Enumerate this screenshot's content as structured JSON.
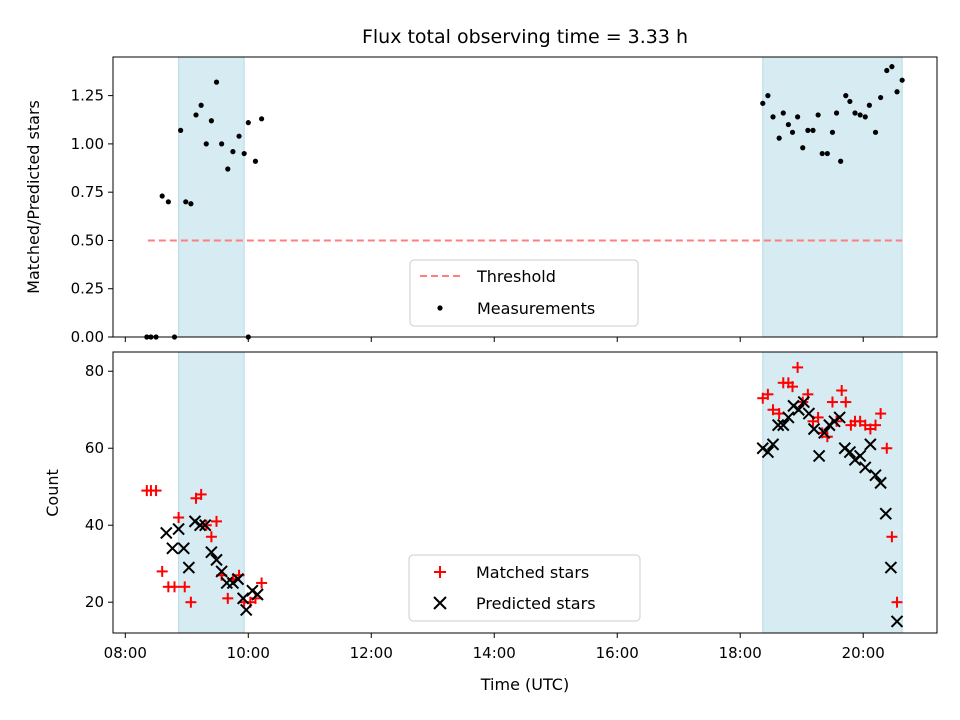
{
  "chart_data": [
    {
      "type": "scatter",
      "title": "Flux total observing time = 3.33 h",
      "xlabel": "",
      "ylabel": "Matched/Predicted stars",
      "xlim": [
        "07:48",
        "21:12"
      ],
      "ylim": [
        0,
        1.45
      ],
      "yticks": [
        "0.00",
        "0.25",
        "0.50",
        "0.75",
        "1.00",
        "1.25"
      ],
      "legend_position": "lower-center",
      "shaded_intervals": [
        [
          "08:52",
          "09:56"
        ],
        [
          "18:22",
          "20:38"
        ]
      ],
      "shade_color": "#add8e6",
      "threshold": {
        "name": "Threshold",
        "value": 0.5,
        "from": "08:22",
        "to": "20:38",
        "color": "#ff7f7f",
        "style": "dashed"
      },
      "series": [
        {
          "name": "Measurements",
          "color": "#000000",
          "marker": "dot",
          "points": [
            [
              "08:21",
              0.0
            ],
            [
              "08:25",
              0.0
            ],
            [
              "08:30",
              0.0
            ],
            [
              "08:36",
              0.73
            ],
            [
              "08:42",
              0.7
            ],
            [
              "08:48",
              0.0
            ],
            [
              "08:54",
              1.07
            ],
            [
              "08:59",
              0.7
            ],
            [
              "09:04",
              0.69
            ],
            [
              "09:09",
              1.15
            ],
            [
              "09:14",
              1.2
            ],
            [
              "09:19",
              1.0
            ],
            [
              "09:24",
              1.12
            ],
            [
              "09:29",
              1.32
            ],
            [
              "09:34",
              1.0
            ],
            [
              "09:40",
              0.87
            ],
            [
              "09:45",
              0.96
            ],
            [
              "09:51",
              1.04
            ],
            [
              "09:56",
              0.95
            ],
            [
              "10:00",
              1.11
            ],
            [
              "10:00",
              0.0
            ],
            [
              "10:07",
              0.91
            ],
            [
              "10:13",
              1.13
            ],
            [
              "18:22",
              1.21
            ],
            [
              "18:27",
              1.25
            ],
            [
              "18:32",
              1.14
            ],
            [
              "18:38",
              1.03
            ],
            [
              "18:42",
              1.16
            ],
            [
              "18:47",
              1.1
            ],
            [
              "18:51",
              1.06
            ],
            [
              "18:56",
              1.14
            ],
            [
              "19:01",
              0.98
            ],
            [
              "19:06",
              1.07
            ],
            [
              "19:11",
              1.07
            ],
            [
              "19:16",
              1.15
            ],
            [
              "19:20",
              0.95
            ],
            [
              "19:25",
              0.95
            ],
            [
              "19:30",
              1.06
            ],
            [
              "19:34",
              1.16
            ],
            [
              "19:38",
              0.91
            ],
            [
              "19:43",
              1.25
            ],
            [
              "19:47",
              1.22
            ],
            [
              "19:52",
              1.16
            ],
            [
              "19:57",
              1.15
            ],
            [
              "20:02",
              1.14
            ],
            [
              "20:06",
              1.2
            ],
            [
              "20:12",
              1.06
            ],
            [
              "20:17",
              1.24
            ],
            [
              "20:23",
              1.38
            ],
            [
              "20:28",
              1.4
            ],
            [
              "20:33",
              1.27
            ],
            [
              "20:38",
              1.33
            ]
          ]
        }
      ]
    },
    {
      "type": "scatter",
      "title": "",
      "xlabel": "Time (UTC)",
      "ylabel": "Count",
      "xlim": [
        "07:48",
        "21:12"
      ],
      "ylim": [
        12,
        85
      ],
      "yticks": [
        20,
        40,
        60,
        80
      ],
      "xticks": [
        "08:00",
        "10:00",
        "12:00",
        "14:00",
        "16:00",
        "18:00",
        "20:00"
      ],
      "legend_position": "lower-center",
      "shaded_intervals": [
        [
          "08:52",
          "09:56"
        ],
        [
          "18:22",
          "20:38"
        ]
      ],
      "shade_color": "#add8e6",
      "series": [
        {
          "name": "Matched stars",
          "color": "#ff0000",
          "marker": "plus",
          "points": [
            [
              "08:21",
              49
            ],
            [
              "08:25",
              49
            ],
            [
              "08:30",
              49
            ],
            [
              "08:36",
              28
            ],
            [
              "08:42",
              24
            ],
            [
              "08:48",
              24
            ],
            [
              "08:52",
              42
            ],
            [
              "08:58",
              24
            ],
            [
              "09:04",
              20
            ],
            [
              "09:09",
              47
            ],
            [
              "09:14",
              48
            ],
            [
              "09:19",
              40
            ],
            [
              "09:24",
              37
            ],
            [
              "09:29",
              41
            ],
            [
              "09:34",
              27
            ],
            [
              "09:40",
              21
            ],
            [
              "09:45",
              26
            ],
            [
              "09:51",
              27
            ],
            [
              "09:56",
              20
            ],
            [
              "10:02",
              20
            ],
            [
              "10:07",
              21
            ],
            [
              "10:13",
              25
            ],
            [
              "18:22",
              73
            ],
            [
              "18:27",
              74
            ],
            [
              "18:32",
              70
            ],
            [
              "18:38",
              69
            ],
            [
              "18:42",
              77
            ],
            [
              "18:47",
              77
            ],
            [
              "18:51",
              76
            ],
            [
              "18:56",
              81
            ],
            [
              "19:01",
              72
            ],
            [
              "19:06",
              74
            ],
            [
              "19:11",
              67
            ],
            [
              "19:16",
              68
            ],
            [
              "19:20",
              64
            ],
            [
              "19:25",
              63
            ],
            [
              "19:30",
              72
            ],
            [
              "19:34",
              67
            ],
            [
              "19:39",
              75
            ],
            [
              "19:43",
              72
            ],
            [
              "19:48",
              66
            ],
            [
              "19:52",
              67
            ],
            [
              "19:57",
              67
            ],
            [
              "20:02",
              66
            ],
            [
              "20:07",
              65
            ],
            [
              "20:12",
              66
            ],
            [
              "20:17",
              69
            ],
            [
              "20:23",
              60
            ],
            [
              "20:28",
              37
            ],
            [
              "20:33",
              20
            ]
          ]
        },
        {
          "name": "Predicted stars",
          "color": "#000000",
          "marker": "x",
          "points": [
            [
              "08:40",
              38
            ],
            [
              "08:46",
              34
            ],
            [
              "08:52",
              39
            ],
            [
              "08:57",
              34
            ],
            [
              "09:02",
              29
            ],
            [
              "09:08",
              41
            ],
            [
              "09:13",
              40
            ],
            [
              "09:18",
              40
            ],
            [
              "09:24",
              33
            ],
            [
              "09:29",
              31
            ],
            [
              "09:34",
              28
            ],
            [
              "09:39",
              25
            ],
            [
              "09:45",
              25
            ],
            [
              "09:50",
              26
            ],
            [
              "09:55",
              21
            ],
            [
              "09:58",
              18
            ],
            [
              "10:04",
              23
            ],
            [
              "10:09",
              22
            ],
            [
              "18:22",
              60
            ],
            [
              "18:27",
              59
            ],
            [
              "18:32",
              61
            ],
            [
              "18:37",
              66
            ],
            [
              "18:42",
              66
            ],
            [
              "18:47",
              68
            ],
            [
              "18:52",
              71
            ],
            [
              "18:57",
              70
            ],
            [
              "19:02",
              72
            ],
            [
              "19:07",
              69
            ],
            [
              "19:12",
              65
            ],
            [
              "19:17",
              58
            ],
            [
              "19:22",
              64
            ],
            [
              "19:27",
              66
            ],
            [
              "19:32",
              67
            ],
            [
              "19:37",
              68
            ],
            [
              "19:42",
              60
            ],
            [
              "19:47",
              59
            ],
            [
              "19:52",
              57
            ],
            [
              "19:57",
              58
            ],
            [
              "20:02",
              55
            ],
            [
              "20:07",
              61
            ],
            [
              "20:12",
              53
            ],
            [
              "20:17",
              51
            ],
            [
              "20:22",
              43
            ],
            [
              "20:27",
              29
            ],
            [
              "20:33",
              15
            ]
          ]
        }
      ]
    }
  ]
}
